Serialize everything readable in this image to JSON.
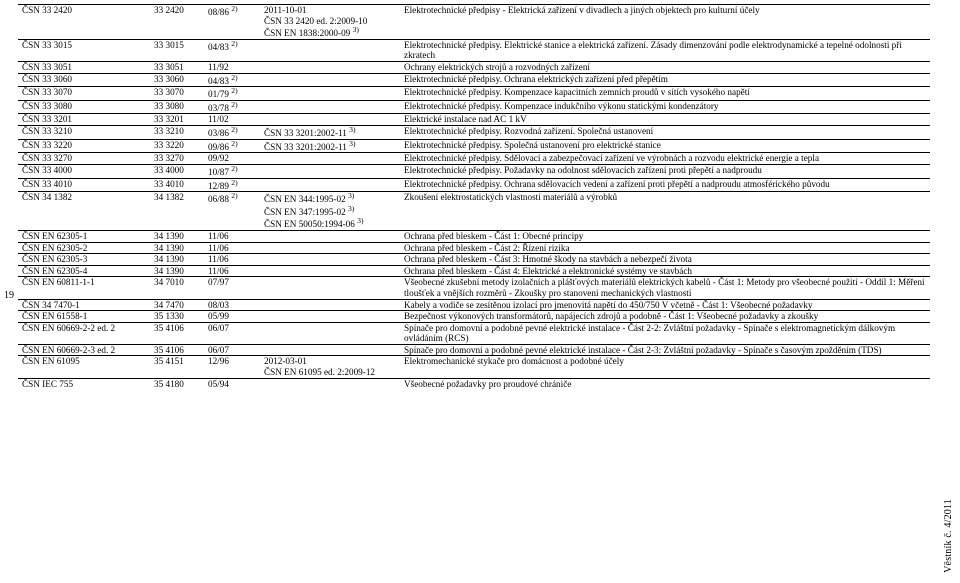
{
  "pageNumber": "19",
  "sideLabel": "Věstník č. 4/2011",
  "rows": [
    {
      "c1": "ČSN 33 2420",
      "c2": "33 2420",
      "c3": "08/86 2)",
      "c4": "2011-10-01\nČSN 33 2420 ed. 2:2009-10\nČSN EN 1838:2000-09 3)",
      "c5": "Elektrotechnické předpisy - Elektrická zařízení v divadlech a jiných objektech pro kulturní účely"
    },
    {
      "c1": "ČSN 33 3015",
      "c2": "33 3015",
      "c3": "04/83 2)",
      "c4": "",
      "c5": "Elektrotechnické předpisy. Elektrické stanice a elektrická zařízení. Zásady dimenzování podle elektrodynamické a tepelné odolnosti při zkratech"
    },
    {
      "c1": "ČSN 33 3051",
      "c2": "33 3051",
      "c3": "11/92",
      "c4": "",
      "c5": "Ochrany elektrických strojů a rozvodných zařízení"
    },
    {
      "c1": "ČSN 33 3060",
      "c2": "33 3060",
      "c3": "04/83 2)",
      "c4": "",
      "c5": "Elektrotechnické předpisy. Ochrana elektrických zařízení před přepětím"
    },
    {
      "c1": "ČSN 33 3070",
      "c2": "33 3070",
      "c3": "01/79 2)",
      "c4": "",
      "c5": "Elektrotechnické předpisy. Kompenzace kapacitních zemních proudů v sítích vysokého napětí"
    },
    {
      "c1": "ČSN 33 3080",
      "c2": "33 3080",
      "c3": "03/78 2)",
      "c4": "",
      "c5": "Elektrotechnické předpisy. Kompenzace indukčního výkonu statickými kondenzátory"
    },
    {
      "c1": "ČSN 33 3201",
      "c2": "33 3201",
      "c3": "11/02",
      "c4": "",
      "c5": "Elektrické instalace nad AC 1 kV"
    },
    {
      "c1": "ČSN 33 3210",
      "c2": "33 3210",
      "c3": "03/86 2)",
      "c4": "ČSN 33 3201:2002-11 3)",
      "c5": "Elektrotechnické předpisy. Rozvodná zařízení. Společná ustanovení"
    },
    {
      "c1": "ČSN 33 3220",
      "c2": "33 3220",
      "c3": "09/86 2)",
      "c4": "ČSN 33 3201:2002-11 3)",
      "c5": "Elektrotechnické předpisy. Společná ustanovení pro elektrické stanice"
    },
    {
      "c1": "ČSN 33 3270",
      "c2": "33 3270",
      "c3": "09/92",
      "c4": "",
      "c5": "Elektrotechnické předpisy. Sdělovací a zabezpečovací zařízení ve výrobnách a rozvodu elektrické energie a tepla"
    },
    {
      "c1": "ČSN 33 4000",
      "c2": "33 4000",
      "c3": "10/87 2)",
      "c4": "",
      "c5": "Elektrotechnické předpisy. Požadavky na odolnost sdělovacích zařízení proti přepětí a nadproudu"
    },
    {
      "c1": "ČSN 33 4010",
      "c2": "33 4010",
      "c3": "12/89 2)",
      "c4": "",
      "c5": "Elektrotechnické předpisy. Ochrana sdělovacích vedení a zařízení proti přepětí a nadproudu atmosférického původu"
    },
    {
      "c1": "ČSN 34 1382",
      "c2": "34 1382",
      "c3": "06/88 2)",
      "c4": "ČSN EN 344:1995-02 3)\nČSN EN 347:1995-02 3)\nČSN EN 50050:1994-06 3)",
      "c5": "Zkoušení elektrostatických vlastností materiálů a výrobků"
    },
    {
      "c1": "ČSN EN 62305-1",
      "c2": "34 1390",
      "c3": "11/06",
      "c4": "",
      "c5": "Ochrana před bleskem - Část 1: Obecné principy"
    },
    {
      "c1": "ČSN EN 62305-2",
      "c2": "34 1390",
      "c3": "11/06",
      "c4": "",
      "c5": "Ochrana před bleskem - Část 2: Řízení rizika"
    },
    {
      "c1": "ČSN EN 62305-3",
      "c2": "34 1390",
      "c3": "11/06",
      "c4": "",
      "c5": "Ochrana před bleskem - Část 3: Hmotné škody na stavbách a nebezpečí života"
    },
    {
      "c1": "ČSN EN 62305-4",
      "c2": "34 1390",
      "c3": "11/06",
      "c4": "",
      "c5": "Ochrana před bleskem - Část 4: Elektrické a elektronické systémy ve stavbách"
    },
    {
      "c1": "ČSN EN 60811-1-1",
      "c2": "34 7010",
      "c3": "07/97",
      "c4": "",
      "c5": "Všeobecné zkušební metody izolačních a plášťových materiálů elektrických kabelů - Část 1: Metody pro všeobecné použití - Oddíl 1: Měření tloušťek a vnějších rozměrů - Zkoušky pro stanovení mechanických vlastností"
    },
    {
      "c1": "ČSN 34 7470-1",
      "c2": "34 7470",
      "c3": "08/03",
      "c4": "",
      "c5": "Kabely a vodiče se zesítěnou izolací pro jmenovitá napětí do 450/750 V včetně - Část 1: Všeobecné požadavky"
    },
    {
      "c1": "ČSN EN 61558-1",
      "c2": "35 1330",
      "c3": "05/99",
      "c4": "",
      "c5": "Bezpečnost výkonových transformátorů, napájecích zdrojů a podobně - Část 1: Všeobecné požadavky a zkoušky"
    },
    {
      "c1": "ČSN EN 60669-2-2 ed. 2",
      "c2": "35 4106",
      "c3": "06/07",
      "c4": "",
      "c5": "Spínače pro domovní a podobné pevné elektrické instalace - Část 2-2: Zvláštní požadavky - Spínače s elektromagnetickým dálkovým ovládáním (RCS)"
    },
    {
      "c1": "ČSN EN 60669-2-3 ed. 2",
      "c2": "35 4106",
      "c3": "06/07",
      "c4": "",
      "c5": "Spínače pro domovní a podobné pevné elektrické instalace - Část 2-3: Zvláštní požadavky - Spínače s časovým zpožděním (TDS)"
    },
    {
      "c1": "ČSN EN 61095",
      "c2": "35 4151",
      "c3": "12/96",
      "c4": "2012-03-01\nČSN EN 61095 ed. 2:2009-12",
      "c5": "Elektromechanické stykače pro domácnost a podobné účely"
    },
    {
      "c1": "ČSN IEC 755",
      "c2": "35 4180",
      "c3": "05/94",
      "c4": "",
      "c5": "Všeobecné požadavky pro proudové chrániče"
    }
  ]
}
